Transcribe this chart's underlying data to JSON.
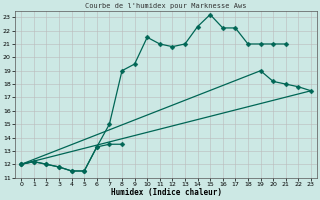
{
  "title": "Courbe de l'humidex pour Marknesse Aws",
  "xlabel": "Humidex (Indice chaleur)",
  "bg_color": "#cce8e4",
  "line_color": "#006655",
  "grid_color": "#bbbbbb",
  "xlim": [
    -0.5,
    23.5
  ],
  "ylim": [
    11,
    23.5
  ],
  "xticks": [
    0,
    1,
    2,
    3,
    4,
    5,
    6,
    7,
    8,
    9,
    10,
    11,
    12,
    13,
    14,
    15,
    16,
    17,
    18,
    19,
    20,
    21,
    22,
    23
  ],
  "yticks": [
    11,
    12,
    13,
    14,
    15,
    16,
    17,
    18,
    19,
    20,
    21,
    22,
    23
  ],
  "series1_x": [
    0,
    1,
    2,
    3,
    4,
    5,
    6,
    7,
    8,
    9,
    10,
    11,
    12,
    13,
    14,
    15,
    16,
    17,
    18,
    19,
    20,
    21
  ],
  "series1_y": [
    12,
    12.2,
    12,
    11.8,
    11.5,
    11.5,
    13.3,
    15.0,
    19.0,
    19.5,
    21.5,
    21.0,
    20.8,
    21.0,
    22.3,
    23.2,
    22.2,
    22.2,
    21.0,
    21.0,
    21.0,
    21.0
  ],
  "series2_x": [
    0,
    1,
    2,
    3,
    4,
    5,
    6,
    7,
    8
  ],
  "series2_y": [
    12,
    12.2,
    12,
    11.8,
    11.5,
    11.5,
    13.3,
    13.5,
    13.5
  ],
  "series3_x": [
    0,
    19,
    20,
    21,
    22,
    23
  ],
  "series3_y": [
    12,
    19.0,
    18.2,
    18.0,
    17.8,
    17.5
  ],
  "series4_x": [
    0,
    23
  ],
  "series4_y": [
    12,
    17.5
  ]
}
